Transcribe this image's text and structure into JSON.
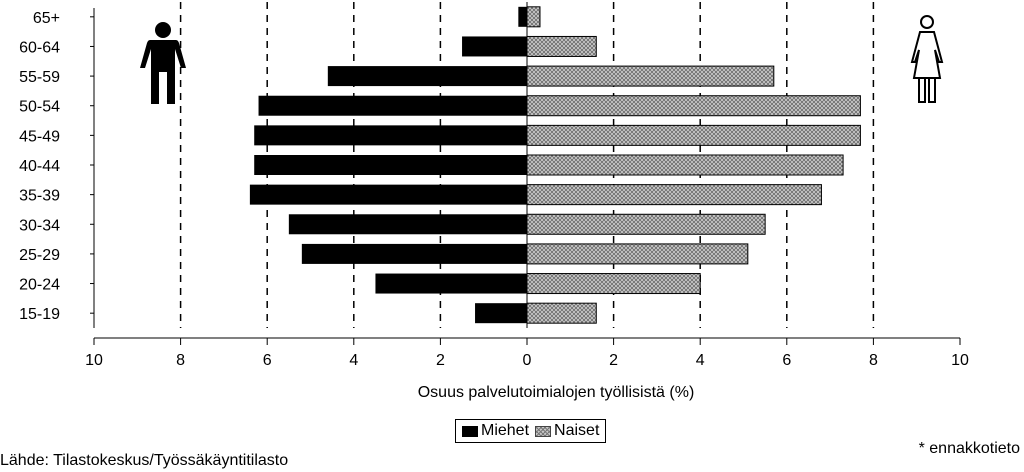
{
  "chart_data": {
    "type": "bar",
    "orientation": "horizontal",
    "layout": "population-pyramid",
    "categories": [
      "15-19",
      "20-24",
      "25-29",
      "30-34",
      "35-39",
      "40-44",
      "45-49",
      "50-54",
      "55-59",
      "60-64",
      "65+"
    ],
    "series": [
      {
        "name": "Miehet",
        "values": [
          1.2,
          3.5,
          5.2,
          5.5,
          6.4,
          6.3,
          6.3,
          6.2,
          4.6,
          1.5,
          0.2
        ],
        "color": "#000000",
        "side": "left"
      },
      {
        "name": "Naiset",
        "values": [
          1.6,
          4.0,
          5.1,
          5.5,
          6.8,
          7.3,
          7.7,
          7.7,
          5.7,
          1.6,
          0.3
        ],
        "color": "#c8c8c8",
        "pattern": "crosshatch",
        "side": "right"
      }
    ],
    "xlabel": "Osuus palvelutoimialojen työllisistä (%)",
    "xlim": [
      -10,
      10
    ],
    "xticks": [
      -10,
      -8,
      -6,
      -4,
      -2,
      0,
      2,
      4,
      6,
      8,
      10
    ],
    "xtick_labels": [
      "10",
      "8",
      "6",
      "4",
      "2",
      "0",
      "2",
      "4",
      "6",
      "8",
      "10"
    ],
    "grid": "vertical dashed",
    "legend_position": "bottom",
    "icons": [
      "man-icon",
      "woman-icon"
    ]
  },
  "legend": {
    "men_label": "Miehet",
    "women_label": "Naiset"
  },
  "source": "Lähde: Tilastokeskus/Työssäkäyntitilasto",
  "footnote": "* ennakkotieto"
}
